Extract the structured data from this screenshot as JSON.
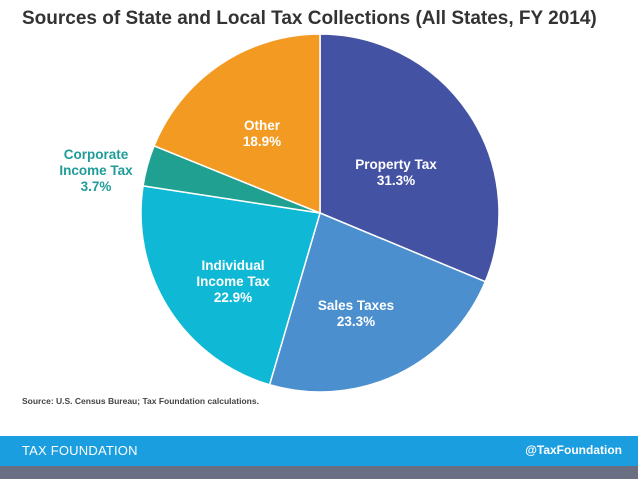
{
  "title": "Sources of State and Local Tax Collections (All States, FY 2014)",
  "source": "Source: U.S. Census Bureau; Tax Foundation calculations.",
  "footer": {
    "brand": "TAX FOUNDATION",
    "handle": "@TaxFoundation"
  },
  "chart_data": {
    "type": "pie",
    "title": "Sources of State and Local Tax Collections (All States, FY 2014)",
    "unit": "%",
    "slices": [
      {
        "label": [
          "Property Tax"
        ],
        "value_label": "31.3%",
        "value": 31.3,
        "color": "#4452a3",
        "label_color": "#ffffff"
      },
      {
        "label": [
          "Sales Taxes"
        ],
        "value_label": "23.3%",
        "value": 23.3,
        "color": "#4b8fce",
        "label_color": "#ffffff"
      },
      {
        "label": [
          "Individual",
          "Income Tax"
        ],
        "value_label": "22.9%",
        "value": 22.9,
        "color": "#0fb8d4",
        "label_color": "#ffffff"
      },
      {
        "label": [
          "Corporate",
          "Income Tax"
        ],
        "value_label": "3.7%",
        "value": 3.7,
        "color": "#1fa090",
        "label_color": "#1f9c99"
      },
      {
        "label": [
          "Other"
        ],
        "value_label": "18.9%",
        "value": 18.9,
        "color": "#f39a23",
        "label_color": "#ffffff"
      }
    ]
  }
}
